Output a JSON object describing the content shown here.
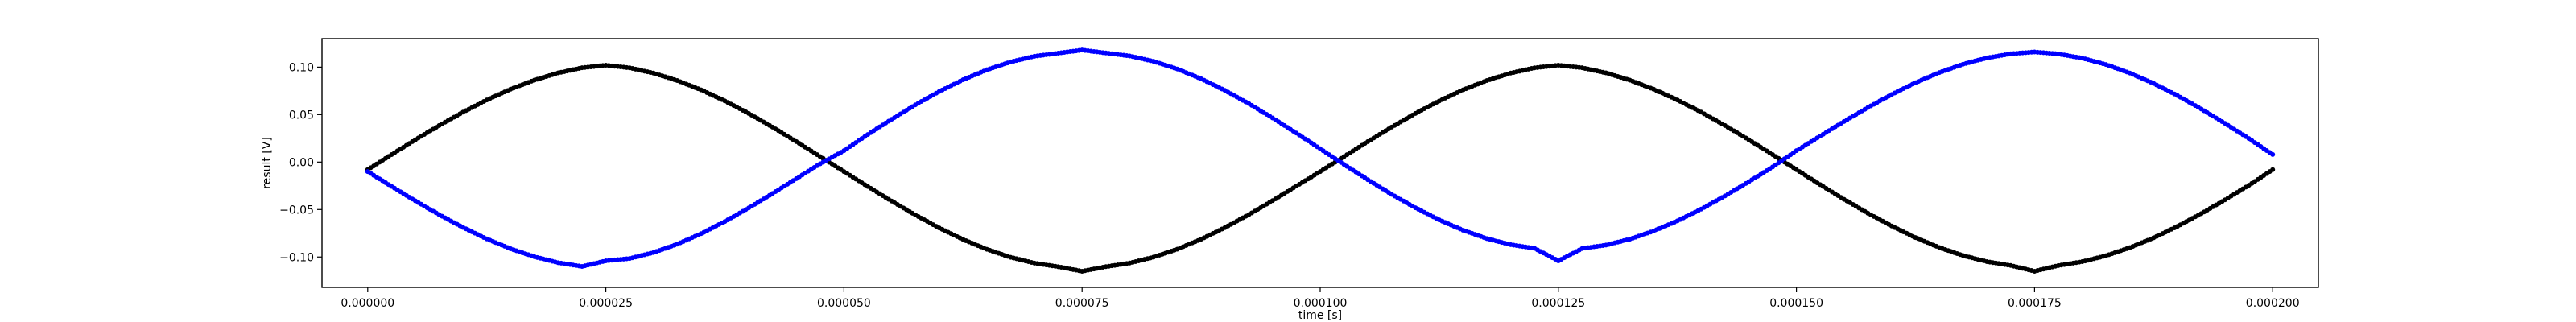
{
  "chart_data": {
    "type": "scatter",
    "title": "",
    "xlabel": "time [s]",
    "ylabel": "result [V]",
    "xlim": [
      -4.8e-06,
      0.0002048
    ],
    "ylim": [
      -0.132,
      0.13
    ],
    "grid": false,
    "legend": "none",
    "x_ticks": [
      0.0,
      2.5e-05,
      5e-05,
      7.5e-05,
      0.0001,
      0.000125,
      0.00015,
      0.000175,
      0.0002
    ],
    "x_tick_labels": [
      "0.000000",
      "0.000025",
      "0.000050",
      "0.000075",
      "0.000100",
      "0.000125",
      "0.000150",
      "0.000175",
      "0.000200"
    ],
    "y_ticks": [
      -0.1,
      -0.05,
      0.0,
      0.05,
      0.1
    ],
    "y_tick_labels": [
      "−0.10",
      "−0.05",
      "0.00",
      "0.05",
      "0.10"
    ],
    "series": [
      {
        "color": "#000000",
        "marker": "dot",
        "x": [
          0.0,
          2.5e-06,
          5e-06,
          7.5e-06,
          1e-05,
          1.25e-05,
          1.5e-05,
          1.75e-05,
          2e-05,
          2.25e-05,
          2.5e-05,
          2.75e-05,
          3e-05,
          3.25e-05,
          3.5e-05,
          3.75e-05,
          4e-05,
          4.25e-05,
          4.5e-05,
          4.75e-05,
          5e-05,
          5.25e-05,
          5.5e-05,
          5.75e-05,
          6e-05,
          6.25e-05,
          6.5e-05,
          6.75e-05,
          7e-05,
          7.25e-05,
          7.5e-05,
          7.75e-05,
          8e-05,
          8.25e-05,
          8.5e-05,
          8.75e-05,
          9e-05,
          9.25e-05,
          9.5e-05,
          9.75e-05,
          0.0001,
          0.0001025,
          0.000105,
          0.0001075,
          0.00011,
          0.0001125,
          0.000115,
          0.0001175,
          0.00012,
          0.0001225,
          0.000125,
          0.0001275,
          0.00013,
          0.0001325,
          0.000135,
          0.0001375,
          0.00014,
          0.0001425,
          0.000145,
          0.0001475,
          0.00015,
          0.0001525,
          0.000155,
          0.0001575,
          0.00016,
          0.0001625,
          0.000165,
          0.0001675,
          0.00017,
          0.0001725,
          0.000175,
          0.0001775,
          0.00018,
          0.0001825,
          0.000185,
          0.0001875,
          0.00019,
          0.0001925,
          0.000195,
          0.0001975,
          0.0002
        ],
        "y": [
          -0.008,
          0.00788,
          0.02349,
          0.0385,
          0.05258,
          0.06543,
          0.07677,
          0.08633,
          0.09392,
          0.09934,
          0.102,
          0.09929,
          0.09372,
          0.08591,
          0.07609,
          0.06443,
          0.05125,
          0.03686,
          0.0216,
          0.00582,
          -0.01,
          -0.0257,
          -0.04105,
          -0.05573,
          -0.06932,
          -0.08148,
          -0.09188,
          -0.10027,
          -0.10644,
          -0.11024,
          -0.115,
          -0.11022,
          -0.10637,
          -0.10014,
          -0.09171,
          -0.08125,
          -0.06902,
          -0.05538,
          -0.04063,
          -0.02522,
          -0.01,
          0.00582,
          0.0216,
          0.03686,
          0.05125,
          0.06443,
          0.07609,
          0.08591,
          0.09372,
          0.09929,
          0.102,
          0.09934,
          0.09392,
          0.08633,
          0.07677,
          0.06543,
          0.05258,
          0.0385,
          0.02349,
          0.00788,
          -0.008,
          -0.02383,
          -0.03922,
          -0.05385,
          -0.06738,
          -0.07952,
          -0.08998,
          -0.0985,
          -0.10487,
          -0.10893,
          -0.115,
          -0.10895,
          -0.10492,
          -0.09861,
          -0.09017,
          -0.07978,
          -0.06773,
          -0.05428,
          -0.03974,
          -0.02446,
          -0.008
        ]
      },
      {
        "color": "#0000ff",
        "marker": "dot",
        "x": [
          0.0,
          2.5e-06,
          5e-06,
          7.5e-06,
          1e-05,
          1.25e-05,
          1.5e-05,
          1.75e-05,
          2e-05,
          2.25e-05,
          2.5e-05,
          2.75e-05,
          3e-05,
          3.25e-05,
          3.5e-05,
          3.75e-05,
          4e-05,
          4.25e-05,
          4.5e-05,
          4.75e-05,
          5e-05,
          5.25e-05,
          5.5e-05,
          5.75e-05,
          6e-05,
          6.25e-05,
          6.5e-05,
          6.75e-05,
          7e-05,
          7.25e-05,
          7.5e-05,
          7.75e-05,
          8e-05,
          8.25e-05,
          8.5e-05,
          8.75e-05,
          9e-05,
          9.25e-05,
          9.5e-05,
          9.75e-05,
          0.0001,
          0.0001025,
          0.000105,
          0.0001075,
          0.00011,
          0.0001125,
          0.000115,
          0.0001175,
          0.00012,
          0.0001225,
          0.000125,
          0.0001275,
          0.00013,
          0.0001325,
          0.000135,
          0.0001375,
          0.00014,
          0.0001425,
          0.000145,
          0.0001475,
          0.00015,
          0.0001525,
          0.000155,
          0.0001575,
          0.00016,
          0.0001625,
          0.000165,
          0.0001675,
          0.00017,
          0.0001725,
          0.000175,
          0.0001775,
          0.00018,
          0.0001825,
          0.000185,
          0.0001875,
          0.00019,
          0.0001925,
          0.000195,
          0.0001975,
          0.0002
        ],
        "y": [
          -0.01,
          -0.02559,
          -0.04085,
          -0.05539,
          -0.06885,
          -0.08091,
          -0.09128,
          -0.09971,
          -0.10599,
          -0.10997,
          -0.104,
          -0.10158,
          -0.09528,
          -0.08646,
          -0.07544,
          -0.06259,
          -0.04832,
          -0.03311,
          -0.01744,
          -0.00181,
          0.012,
          0.02897,
          0.04505,
          0.06031,
          0.07431,
          0.08671,
          0.0972,
          0.10551,
          0.11142,
          0.11477,
          0.118,
          0.11493,
          0.1118,
          0.10613,
          0.09804,
          0.08773,
          0.07547,
          0.0616,
          0.04648,
          0.03053,
          0.014,
          -0.00247,
          -0.01859,
          -0.03396,
          -0.04819,
          -0.06092,
          -0.07181,
          -0.08058,
          -0.08699,
          -0.09085,
          -0.104,
          -0.09106,
          -0.08741,
          -0.08121,
          -0.07265,
          -0.06199,
          -0.04953,
          -0.03563,
          -0.02069,
          -0.00512,
          0.012,
          0.02742,
          0.04277,
          0.05748,
          0.07121,
          0.0836,
          0.09433,
          0.10313,
          0.10977,
          0.11407,
          0.116,
          0.11392,
          0.1095,
          0.10274,
          0.0938,
          0.08284,
          0.07012,
          0.05596,
          0.04071,
          0.02474,
          0.008
        ]
      }
    ]
  }
}
